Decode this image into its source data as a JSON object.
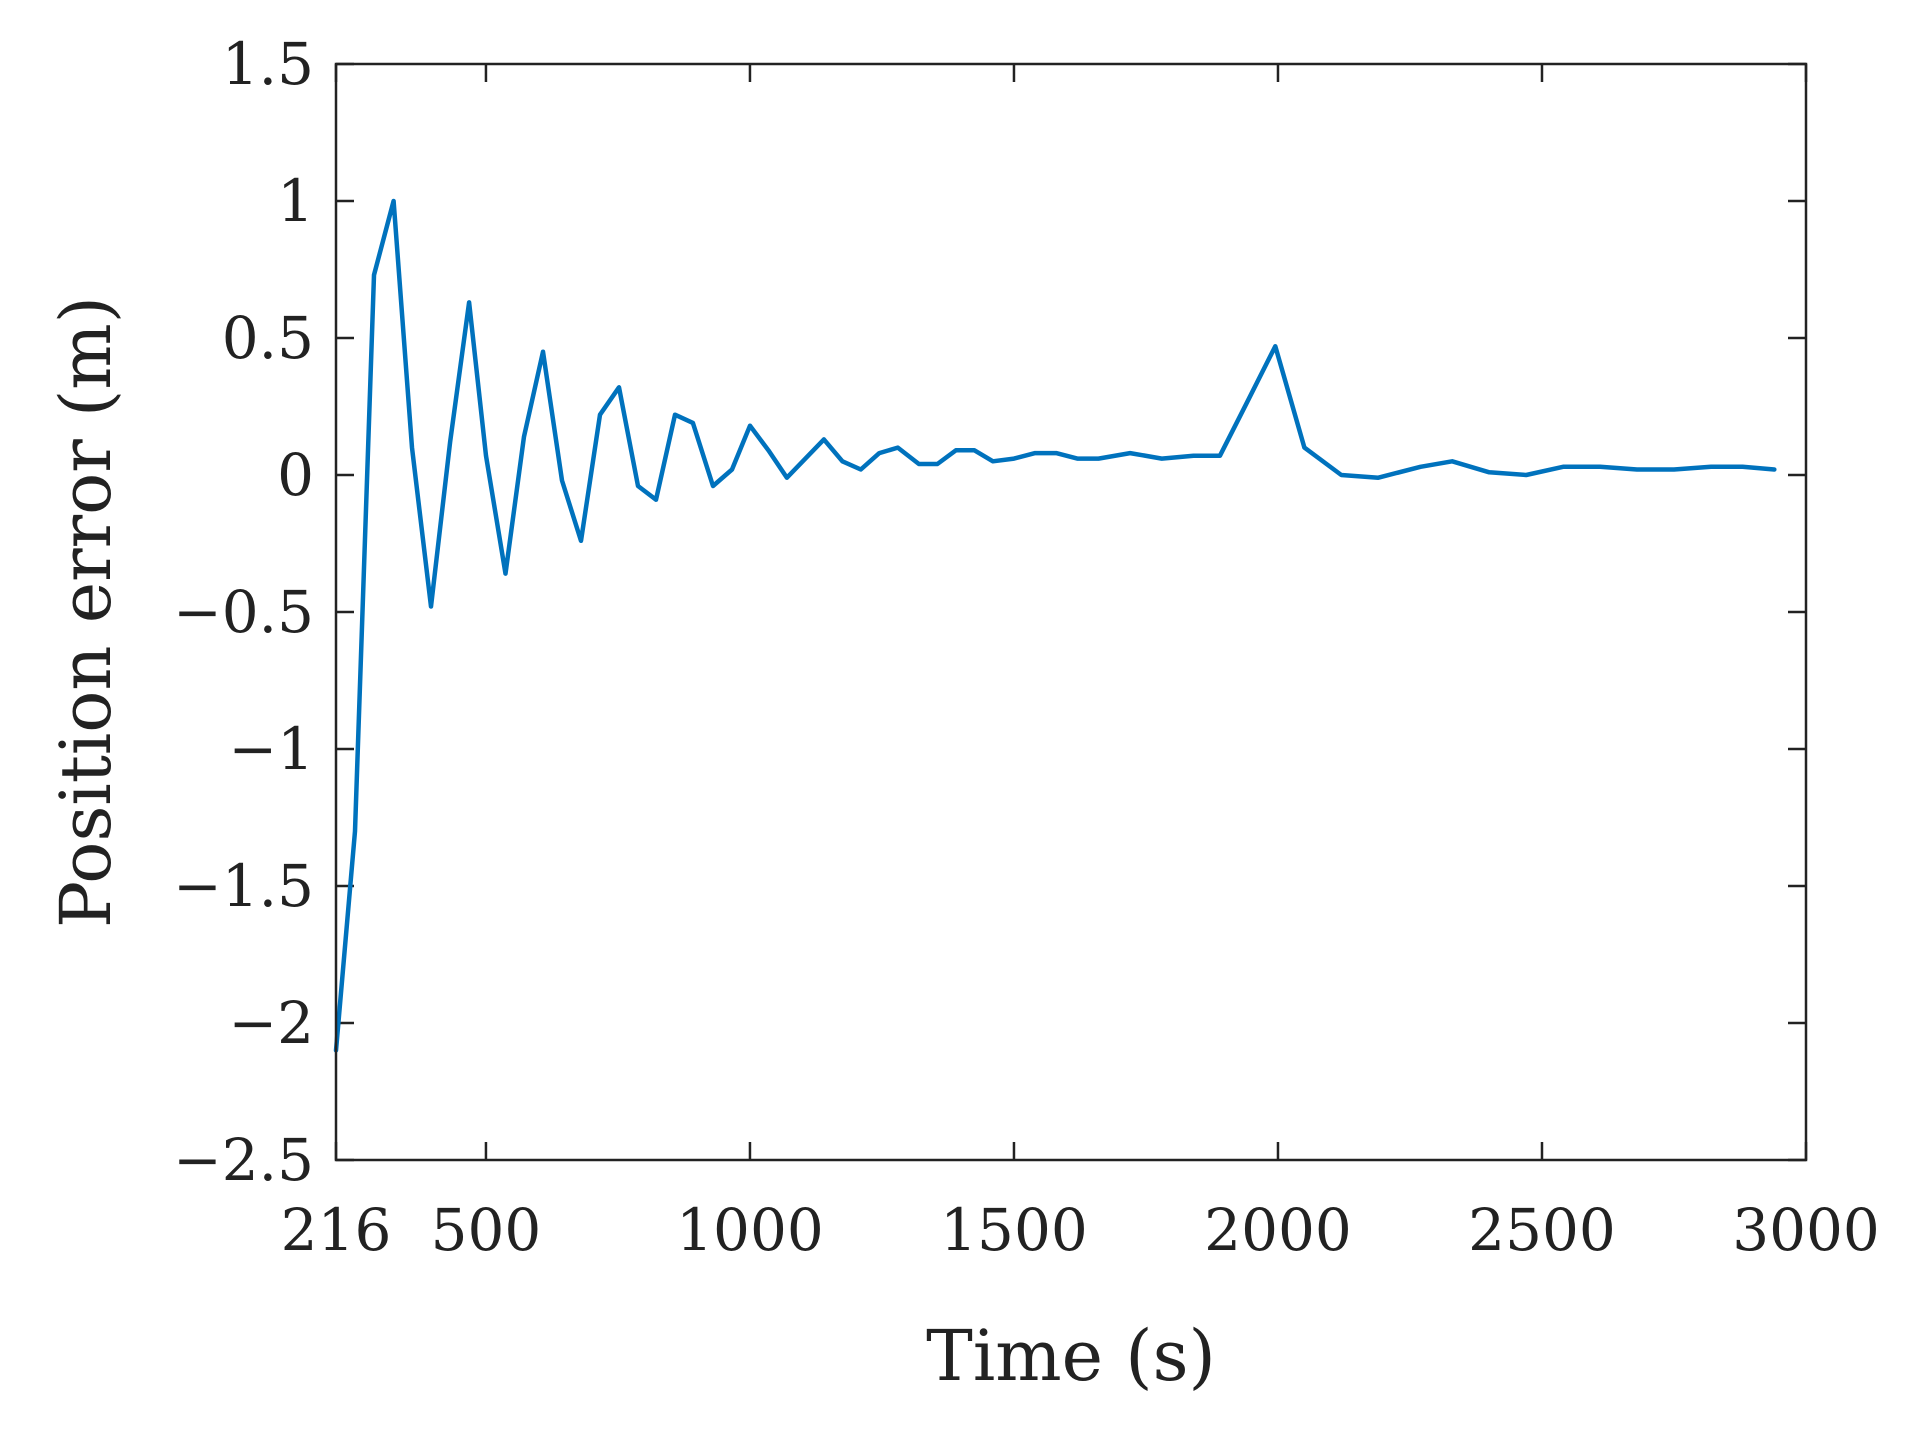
{
  "chart_data": {
    "type": "line",
    "title": "",
    "xlabel": "Time (s)",
    "ylabel": "Position error (m)",
    "xlim": [
      216,
      3000
    ],
    "ylim": [
      -2.5,
      1.5
    ],
    "x_ticks": [
      216,
      500,
      1000,
      1500,
      2000,
      2500,
      3000
    ],
    "x_tick_labels": [
      "216",
      "500",
      "1000",
      "1500",
      "2000",
      "2500",
      "3000"
    ],
    "y_ticks": [
      1.5,
      1,
      0.5,
      0,
      -0.5,
      -1,
      -1.5,
      -2,
      -2.5
    ],
    "y_tick_labels": [
      "1.5",
      "1",
      "0.5",
      "0",
      "−0.5",
      "−1",
      "−1.5",
      "−2",
      "−2.5"
    ],
    "grid": false,
    "line_color": "#0072BD",
    "series": [
      {
        "x": [
          216,
          252,
          288,
          325,
          360,
          396,
          432,
          468,
          500,
          537,
          572,
          608,
          644,
          680,
          716,
          752,
          788,
          822,
          858,
          892,
          930,
          966,
          1000,
          1035,
          1070,
          1105,
          1140,
          1175,
          1210,
          1245,
          1280,
          1320,
          1355,
          1390,
          1425,
          1460,
          1500,
          1540,
          1580,
          1620,
          1660,
          1720,
          1780,
          1840,
          1890,
          1940,
          1995,
          2050,
          2120,
          2190,
          2270,
          2330,
          2400,
          2470,
          2540,
          2610,
          2680,
          2750,
          2820,
          2880,
          2940
        ],
        "y": [
          -2.1,
          -1.3,
          0.73,
          1.0,
          0.1,
          -0.48,
          0.12,
          0.63,
          0.07,
          -0.36,
          0.14,
          0.45,
          -0.02,
          -0.24,
          0.22,
          0.32,
          -0.04,
          -0.09,
          0.22,
          0.19,
          -0.04,
          0.02,
          0.18,
          0.09,
          -0.01,
          0.06,
          0.13,
          0.05,
          0.02,
          0.08,
          0.1,
          0.04,
          0.04,
          0.09,
          0.09,
          0.05,
          0.06,
          0.08,
          0.08,
          0.06,
          0.06,
          0.08,
          0.06,
          0.07,
          0.07,
          0.26,
          0.47,
          0.1,
          0.0,
          -0.01,
          0.03,
          0.05,
          0.01,
          0.0,
          0.03,
          0.03,
          0.02,
          0.02,
          0.03,
          0.03,
          0.02
        ]
      }
    ]
  }
}
